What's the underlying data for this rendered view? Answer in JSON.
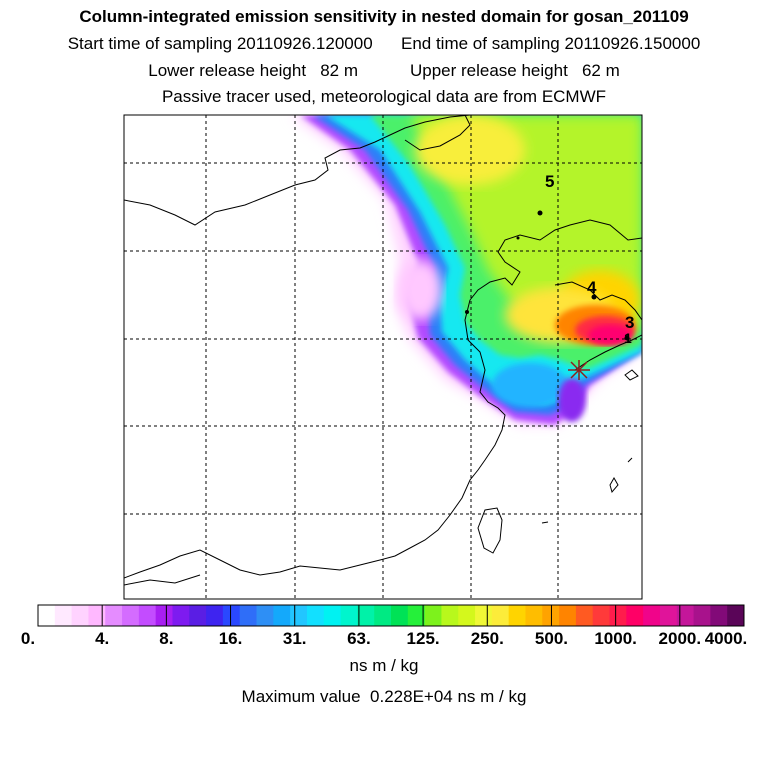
{
  "header": {
    "title": "Column-integrated emission sensitivity in nested domain for gosan_201109",
    "line2": "Start time of sampling 20110926.120000      End time of sampling 20110926.150000",
    "line3": "Lower release height   82 m           Upper release height   62 m",
    "line4": "Passive tracer used, meteorological data are from ECMWF"
  },
  "map": {
    "stations": [
      {
        "label": "5"
      },
      {
        "label": "4"
      },
      {
        "label": "3"
      },
      {
        "label": "1"
      }
    ],
    "release_marker": "gosan-release-point"
  },
  "colorbar": {
    "tick_labels": [
      "0.",
      "4.",
      "8.",
      "16.",
      "31.",
      "63.",
      "125.",
      "250.",
      "500.",
      "1000.",
      "2000.",
      "4000."
    ],
    "colors": [
      "#ffffff",
      "#ffe9ff",
      "#ffd3ff",
      "#ffb8ff",
      "#e58cff",
      "#d46cff",
      "#c34cff",
      "#a81ef2",
      "#7e1bf0",
      "#5a1ee4",
      "#3e24f0",
      "#2a48ff",
      "#2f6ef8",
      "#2e8ff5",
      "#14a9fb",
      "#22c6ff",
      "#12e0ff",
      "#00f2f2",
      "#00f5cd",
      "#00f2a8",
      "#00ea83",
      "#00e256",
      "#25f03a",
      "#7df21c",
      "#b8f81c",
      "#d4f81c",
      "#f0f836",
      "#fcec3a",
      "#ffd400",
      "#ffbd00",
      "#ffa300",
      "#ff8400",
      "#ff5a22",
      "#ff3a3a",
      "#ff1c4c",
      "#ff0066",
      "#f0048a",
      "#e0149a",
      "#c4169a",
      "#a8128c",
      "#820a78",
      "#5a0558"
    ],
    "units": "ns m / kg"
  },
  "footer": {
    "maximum": "Maximum value  0.228E+04 ns m / kg"
  }
}
